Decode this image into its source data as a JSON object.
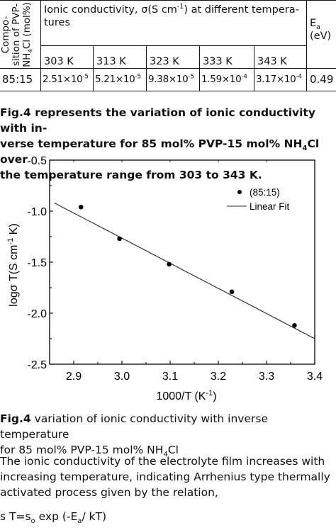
{
  "table": {
    "row_header": [
      "Compo-",
      "sition of PVP-",
      "NH4Cl (mol%)"
    ],
    "col_header": "Ionic conductivity, σ(S cm-1) at different temperatures",
    "col_header_line1": "Ionic conductivity, σ(S cm",
    "col_header_sup": "-1",
    "col_header_line1b": ") at different tempera-",
    "col_header_line2": "tures",
    "ea_label": "E",
    "ea_sub": "a",
    "ea_unit": "(eV)",
    "temperatures": [
      "303 K",
      "313 K",
      "323 K",
      "333 K",
      "343 K"
    ],
    "row": {
      "composition": "85:15",
      "values": [
        {
          "mant": "2.51×10",
          "exp": "-5"
        },
        {
          "mant": "5.21×10",
          "exp": "-5"
        },
        {
          "mant": "9.38×10",
          "exp": "-5"
        },
        {
          "mant": "1.59×10",
          "exp": "-4"
        },
        {
          "mant": "3.17×10",
          "exp": "-4"
        }
      ],
      "ea": "0.49"
    }
  },
  "intro": {
    "line1": "Fig.4 represents the variation of ionic conductivity with in-",
    "line2a": "verse temperature for 85 mol% PVP-15 mol% NH",
    "line2sub": "4",
    "line2b": "Cl over",
    "line3": "the temperature range from 303 to 343 K."
  },
  "chart_data": {
    "type": "scatter",
    "series": [
      {
        "name": "(85:15)",
        "x": [
          2.915,
          2.995,
          3.098,
          3.228,
          3.358
        ],
        "y": [
          -0.96,
          -1.27,
          -1.52,
          -1.79,
          -2.12
        ]
      },
      {
        "name": "Linear Fit",
        "kind": "line",
        "x": [
          2.86,
          3.4
        ],
        "y": [
          -0.92,
          -2.25
        ]
      }
    ],
    "xlabel": "1000/T (K-1)",
    "xlabel_main": "1000/T (K",
    "xlabel_sup": "-1",
    "xlabel_end": ")",
    "ylabel": "logσ T(S cm-1 K)",
    "ylabel_main": "logσ T(S cm",
    "ylabel_sup": "-1",
    "ylabel_end": " K)",
    "xlim": [
      2.85,
      3.4
    ],
    "ylim": [
      -2.5,
      -0.5
    ],
    "xticks": [
      2.9,
      3.0,
      3.1,
      3.2,
      3.3,
      3.4
    ],
    "yticks": [
      -2.5,
      -2.0,
      -1.5,
      -1.0,
      -0.5
    ],
    "xtick_labels": [
      "2.9",
      "3.0",
      "3.1",
      "3.2",
      "3.3",
      "3.4"
    ],
    "ytick_labels": [
      "-2.5",
      "-2.0",
      "-1.5",
      "-1.0",
      "-0.5"
    ],
    "legend_position": "top-right",
    "grid": false
  },
  "caption": {
    "label": "Fig.4",
    "text1": " variation of ionic conductivity with inverse temperature",
    "text2a": "for 85 mol% PVP-15 mol% NH",
    "text2sub": "4",
    "text2b": "Cl"
  },
  "body": {
    "line1": "The ionic conductivity of the electrolyte film increases with",
    "line2": "increasing temperature, indicating Arrhenius type thermally",
    "line3": "activated process given by the relation,"
  },
  "equation": {
    "p1": "s T=s",
    "sub1": "o",
    "p2": " exp (-E",
    "sub2": "a",
    "p3": "/ kT)"
  }
}
